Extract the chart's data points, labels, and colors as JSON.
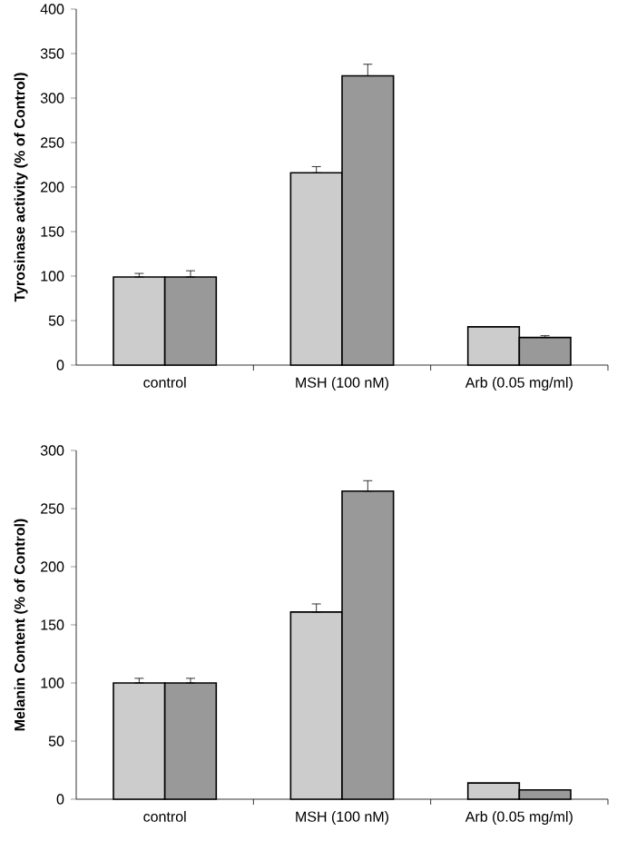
{
  "chart_data": [
    {
      "type": "bar",
      "ylabel": "Tyrosinase activity (% of Control)",
      "categories": [
        "control",
        "MSH (100 nM)",
        "Arb (0.05 mg/ml)"
      ],
      "ylim": [
        0,
        400
      ],
      "yticks": [
        0,
        50,
        100,
        150,
        200,
        250,
        300,
        350,
        400
      ],
      "series": [
        {
          "color": "#cccccc",
          "values": [
            99,
            216,
            43
          ],
          "errors": [
            [
              99,
              103
            ],
            [
              216,
              223
            ],
            null
          ]
        },
        {
          "color": "#999999",
          "values": [
            99,
            325,
            31
          ],
          "errors": [
            [
              99,
              106
            ],
            [
              325,
              338
            ],
            [
              31,
              33
            ]
          ]
        }
      ]
    },
    {
      "type": "bar",
      "ylabel": "Melanin Content (% of Control)",
      "categories": [
        "control",
        "MSH (100 nM)",
        "Arb (0.05 mg/ml)"
      ],
      "ylim": [
        0,
        300
      ],
      "yticks": [
        0,
        50,
        100,
        150,
        200,
        250,
        300
      ],
      "series": [
        {
          "color": "#cccccc",
          "values": [
            100,
            161,
            14
          ],
          "errors": [
            [
              100,
              104
            ],
            [
              161,
              168
            ],
            null
          ]
        },
        {
          "color": "#999999",
          "values": [
            100,
            265,
            8
          ],
          "errors": [
            [
              100,
              104
            ],
            [
              265,
              274
            ],
            null
          ]
        }
      ]
    }
  ]
}
